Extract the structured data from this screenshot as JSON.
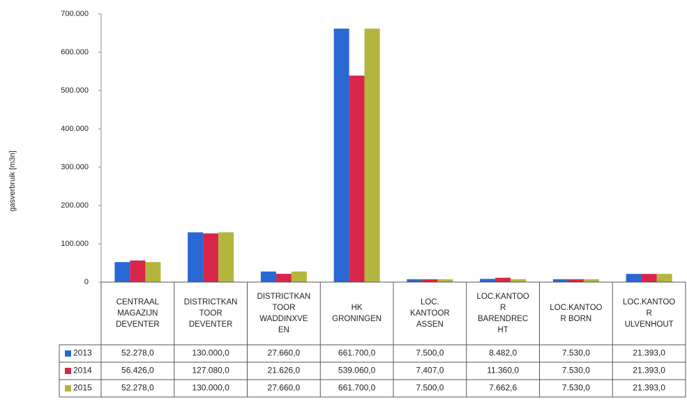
{
  "chart_data": {
    "type": "bar",
    "y_label": "gasverbruik [m3n]",
    "categories": [
      "CENTRAAL\nMAGAZIJN\nDEVENTER",
      "DISTRICTKAN\nTOOR\nDEVENTER",
      "DISTRICTKAN\nTOOR\nWADDINXVE\nEN",
      "HK\nGRONINGEN",
      "LOC.\nKANTOOR\nASSEN",
      "LOC.KANTOO\nR\nBARENDREC\nHT",
      "LOC.KANTOO\nR BORN",
      "LOC.KANTOO\nR\nULVENHOUT"
    ],
    "series": [
      {
        "name": "2013",
        "color": "#2a68d4",
        "values": [
          52278,
          130000,
          27660,
          661700,
          7500,
          8482,
          7530,
          21393
        ],
        "value_labels": [
          "52.278,0",
          "130.000,0",
          "27.660,0",
          "661.700,0",
          "7.500,0",
          "8.482,0",
          "7.530,0",
          "21.393,0"
        ]
      },
      {
        "name": "2014",
        "color": "#d8254a",
        "values": [
          56426,
          127080,
          21626,
          539060,
          7407,
          11360,
          7530,
          21393
        ],
        "value_labels": [
          "56.426,0",
          "127.080,0",
          "21.626,0",
          "539.060,0",
          "7.407,0",
          "11.360,0",
          "7.530,0",
          "21.393,0"
        ]
      },
      {
        "name": "2015",
        "color": "#b4b53c",
        "values": [
          52278,
          130000,
          27660,
          661700,
          7500,
          7662.6,
          7530,
          21393
        ],
        "value_labels": [
          "52.278,0",
          "130.000,0",
          "27.660,0",
          "661.700,0",
          "7.500,0",
          "7.662,6",
          "7.530,0",
          "21.393,0"
        ]
      }
    ],
    "ylim": [
      0,
      700000
    ],
    "yticks": [
      0,
      {
        "value": 100000,
        "label": "100.000"
      },
      {
        "value": 200000,
        "label": "200.000"
      },
      {
        "value": 300000,
        "label": "300.000"
      },
      {
        "value": 400000,
        "label": "400.000"
      },
      {
        "value": 500000,
        "label": "500.000"
      },
      {
        "value": 600000,
        "label": "600.000"
      },
      {
        "value": 700000,
        "label": "700.000"
      }
    ],
    "grid": false
  }
}
